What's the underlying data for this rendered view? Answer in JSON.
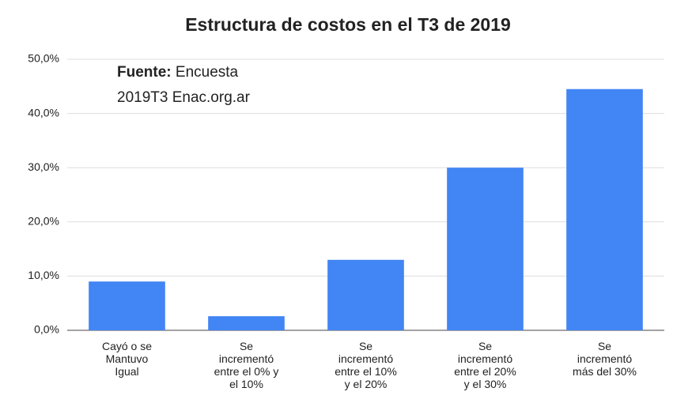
{
  "chart_data": {
    "type": "bar",
    "title": "Estructura de costos en el T3 de 2019",
    "annotation": {
      "label": "Fuente:",
      "text": "Encuesta\n2019T3 Enac.org.ar"
    },
    "categories": [
      "Cayó o se\nMantuvo\nIgual",
      "Se\nincrementó\nentre el 0% y\nel 10%",
      "Se\nincrementó\nentre el 10%\ny el 20%",
      "Se\nincrementó\nentre el 20%\ny el 30%",
      "Se\nincrementó\nmás del 30%"
    ],
    "values": [
      9.0,
      2.6,
      13.0,
      30.0,
      44.5
    ],
    "color": "#4285f4",
    "ylim": [
      0,
      50
    ],
    "yticks": [
      {
        "value": 0,
        "label": "0,0%"
      },
      {
        "value": 10,
        "label": "10,0%"
      },
      {
        "value": 20,
        "label": "20,0%"
      },
      {
        "value": 30,
        "label": "30,0%"
      },
      {
        "value": 40,
        "label": "40,0%"
      },
      {
        "value": 50,
        "label": "50,0%"
      }
    ],
    "grid": true
  }
}
